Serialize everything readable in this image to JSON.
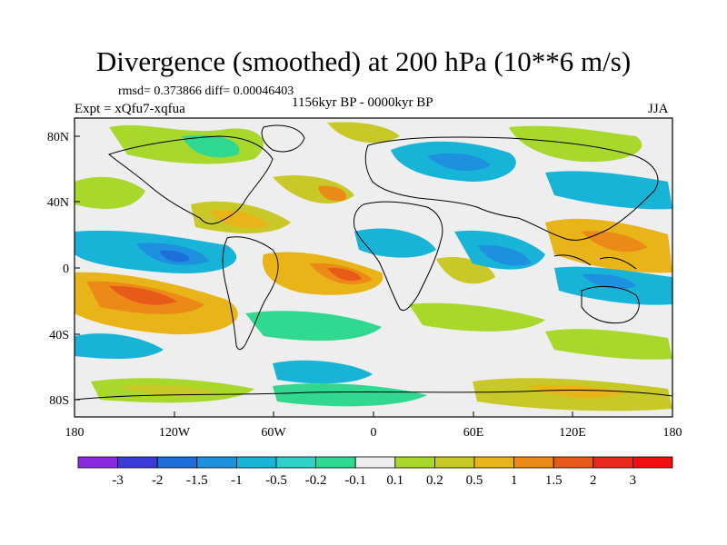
{
  "title": "Divergence (smoothed) at 200 hPa (10**6 m/s)",
  "stats": "rmsd= 0.373866 diff= 0.00046403",
  "experiment": "Expt = xQfu7-xqfua",
  "period": "1156kyr BP - 0000kyr BP",
  "season": "JJA",
  "axes": {
    "lat_ticks": [
      "80N",
      "40N",
      "0",
      "40S",
      "80S"
    ],
    "lon_ticks": [
      "180",
      "120W",
      "60W",
      "0",
      "60E",
      "120E",
      "180"
    ]
  },
  "colorbar": {
    "labels": [
      "-3",
      "-2",
      "-1.5",
      "-1",
      "-0.5",
      "-0.2",
      "-0.1",
      "0.1",
      "0.2",
      "0.5",
      "1",
      "1.5",
      "2",
      "3"
    ],
    "colors": [
      "#8a2be2",
      "#3b3bd8",
      "#1e6fdc",
      "#1e90e0",
      "#18b4d8",
      "#2fd0c8",
      "#30d890",
      "#eeeeee",
      "#a8d82c",
      "#c8c828",
      "#e8b418",
      "#ec8a18",
      "#e85a18",
      "#e82818",
      "#f01010"
    ]
  }
}
